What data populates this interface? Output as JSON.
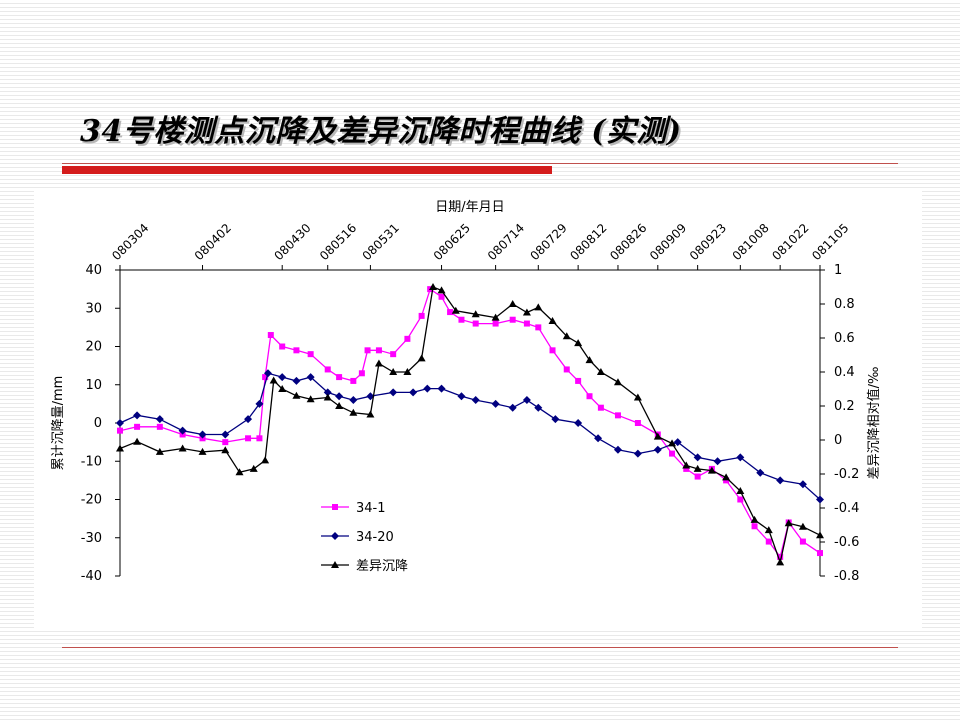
{
  "slide": {
    "title": "34号楼测点沉降及差异沉降时程曲线 (实测)"
  },
  "colors": {
    "series_34_1": "#ff00ff",
    "series_34_20": "#000080",
    "series_diff": "#000000",
    "accent_red": "#d41c1c"
  },
  "chart_data": {
    "type": "line",
    "title": "",
    "xlabel": "日期/年月日",
    "ylabel_left": "累计沉降量/mm",
    "ylabel_right": "差异沉降相对值/‰",
    "x_axis_position": "top",
    "x_ticks": [
      "080304",
      "080402",
      "080430",
      "080516",
      "080531",
      "080625",
      "080714",
      "080729",
      "080812",
      "080826",
      "080909",
      "080923",
      "081008",
      "081022",
      "081105"
    ],
    "ylim_left": [
      -40,
      40
    ],
    "yticks_left": [
      40,
      30,
      20,
      10,
      0,
      -10,
      -20,
      -30,
      -40
    ],
    "ylim_right": [
      -0.8,
      1.0
    ],
    "yticks_right": [
      "1",
      "0.8",
      "0.6",
      "0.4",
      "0.2",
      "0",
      "-0.2",
      "-0.4",
      "-0.6",
      "-0.8"
    ],
    "grid": false,
    "legend_position": "lower-left inside plot",
    "series": [
      {
        "name": "34-1",
        "axis": "left",
        "marker": "square",
        "color": "#ff00ff",
        "points": [
          [
            "080304",
            -2
          ],
          [
            "080310",
            -1
          ],
          [
            "080318",
            -1
          ],
          [
            "080326",
            -3
          ],
          [
            "080402",
            -4
          ],
          [
            "080410",
            -5
          ],
          [
            "080418",
            -4
          ],
          [
            "080422",
            -4
          ],
          [
            "080424",
            12
          ],
          [
            "080426",
            23
          ],
          [
            "080430",
            20
          ],
          [
            "080505",
            19
          ],
          [
            "080510",
            18
          ],
          [
            "080516",
            14
          ],
          [
            "080520",
            12
          ],
          [
            "080525",
            11
          ],
          [
            "080528",
            13
          ],
          [
            "080530",
            19
          ],
          [
            "080603",
            19
          ],
          [
            "080608",
            18
          ],
          [
            "080613",
            22
          ],
          [
            "080618",
            28
          ],
          [
            "080621",
            35
          ],
          [
            "080625",
            33
          ],
          [
            "080628",
            29
          ],
          [
            "080702",
            27
          ],
          [
            "080707",
            26
          ],
          [
            "080714",
            26
          ],
          [
            "080720",
            27
          ],
          [
            "080725",
            26
          ],
          [
            "080729",
            25
          ],
          [
            "080803",
            19
          ],
          [
            "080808",
            14
          ],
          [
            "080812",
            11
          ],
          [
            "080816",
            7
          ],
          [
            "080820",
            4
          ],
          [
            "080826",
            2
          ],
          [
            "080902",
            0
          ],
          [
            "080909",
            -3
          ],
          [
            "080914",
            -8
          ],
          [
            "080919",
            -12
          ],
          [
            "080923",
            -14
          ],
          [
            "080928",
            -12
          ],
          [
            "081003",
            -15
          ],
          [
            "081008",
            -20
          ],
          [
            "081013",
            -27
          ],
          [
            "081018",
            -31
          ],
          [
            "081022",
            -35
          ],
          [
            "081025",
            -26
          ],
          [
            "081030",
            -31
          ],
          [
            "081105",
            -34
          ]
        ]
      },
      {
        "name": "34-20",
        "axis": "left",
        "marker": "diamond",
        "color": "#000080",
        "points": [
          [
            "080304",
            0
          ],
          [
            "080310",
            2
          ],
          [
            "080318",
            1
          ],
          [
            "080326",
            -2
          ],
          [
            "080402",
            -3
          ],
          [
            "080410",
            -3
          ],
          [
            "080418",
            1
          ],
          [
            "080422",
            5
          ],
          [
            "080425",
            13
          ],
          [
            "080430",
            12
          ],
          [
            "080505",
            11
          ],
          [
            "080510",
            12
          ],
          [
            "080516",
            8
          ],
          [
            "080520",
            7
          ],
          [
            "080525",
            6
          ],
          [
            "080531",
            7
          ],
          [
            "080608",
            8
          ],
          [
            "080615",
            8
          ],
          [
            "080620",
            9
          ],
          [
            "080625",
            9
          ],
          [
            "080702",
            7
          ],
          [
            "080707",
            6
          ],
          [
            "080714",
            5
          ],
          [
            "080720",
            4
          ],
          [
            "080725",
            6
          ],
          [
            "080729",
            4
          ],
          [
            "080804",
            1
          ],
          [
            "080812",
            0
          ],
          [
            "080819",
            -4
          ],
          [
            "080826",
            -7
          ],
          [
            "080902",
            -8
          ],
          [
            "080909",
            -7
          ],
          [
            "080916",
            -5
          ],
          [
            "080923",
            -9
          ],
          [
            "080930",
            -10
          ],
          [
            "081008",
            -9
          ],
          [
            "081015",
            -13
          ],
          [
            "081022",
            -15
          ],
          [
            "081030",
            -16
          ],
          [
            "081105",
            -20
          ]
        ]
      },
      {
        "name": "差异沉降",
        "axis": "right",
        "marker": "triangle",
        "color": "#000000",
        "points": [
          [
            "080304",
            -0.05
          ],
          [
            "080310",
            -0.01
          ],
          [
            "080318",
            -0.07
          ],
          [
            "080326",
            -0.05
          ],
          [
            "080402",
            -0.07
          ],
          [
            "080410",
            -0.06
          ],
          [
            "080415",
            -0.19
          ],
          [
            "080420",
            -0.17
          ],
          [
            "080424",
            -0.12
          ],
          [
            "080427",
            0.35
          ],
          [
            "080430",
            0.3
          ],
          [
            "080505",
            0.26
          ],
          [
            "080510",
            0.24
          ],
          [
            "080516",
            0.25
          ],
          [
            "080520",
            0.2
          ],
          [
            "080525",
            0.16
          ],
          [
            "080531",
            0.15
          ],
          [
            "080603",
            0.45
          ],
          [
            "080608",
            0.4
          ],
          [
            "080613",
            0.4
          ],
          [
            "080618",
            0.48
          ],
          [
            "080622",
            0.9
          ],
          [
            "080625",
            0.88
          ],
          [
            "080630",
            0.76
          ],
          [
            "080707",
            0.74
          ],
          [
            "080714",
            0.72
          ],
          [
            "080720",
            0.8
          ],
          [
            "080725",
            0.75
          ],
          [
            "080729",
            0.78
          ],
          [
            "080803",
            0.7
          ],
          [
            "080808",
            0.61
          ],
          [
            "080812",
            0.57
          ],
          [
            "080816",
            0.47
          ],
          [
            "080820",
            0.4
          ],
          [
            "080826",
            0.34
          ],
          [
            "080902",
            0.25
          ],
          [
            "080909",
            0.02
          ],
          [
            "080914",
            -0.02
          ],
          [
            "080919",
            -0.15
          ],
          [
            "080923",
            -0.17
          ],
          [
            "080928",
            -0.18
          ],
          [
            "081003",
            -0.22
          ],
          [
            "081008",
            -0.3
          ],
          [
            "081013",
            -0.47
          ],
          [
            "081018",
            -0.53
          ],
          [
            "081022",
            -0.72
          ],
          [
            "081025",
            -0.49
          ],
          [
            "081030",
            -0.51
          ],
          [
            "081105",
            -0.56
          ]
        ]
      }
    ],
    "legend": [
      {
        "label": "34-1",
        "marker": "square",
        "color": "#ff00ff"
      },
      {
        "label": "34-20",
        "marker": "diamond",
        "color": "#000080"
      },
      {
        "label": "差异沉降",
        "marker": "triangle",
        "color": "#000000"
      }
    ]
  }
}
